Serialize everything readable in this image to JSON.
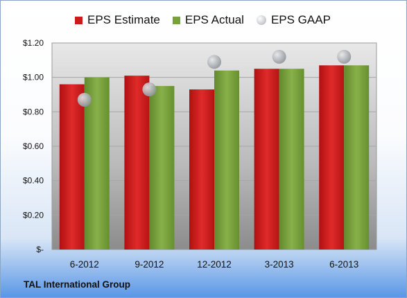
{
  "chart_data": {
    "type": "bar",
    "categories": [
      "6-2012",
      "9-2012",
      "12-2012",
      "3-2013",
      "6-2013"
    ],
    "series": [
      {
        "name": "EPS Estimate",
        "values": [
          0.96,
          1.01,
          0.93,
          1.05,
          1.07
        ],
        "color": "#cc1a1a",
        "mark": "bar"
      },
      {
        "name": "EPS Actual",
        "values": [
          1.0,
          0.95,
          1.04,
          1.05,
          1.07
        ],
        "color": "#77a13a",
        "mark": "bar"
      },
      {
        "name": "EPS GAAP",
        "values": [
          0.87,
          0.93,
          1.09,
          1.12,
          1.12
        ],
        "color": "#b8bcc2",
        "mark": "point"
      }
    ],
    "y_tick_labels": [
      "$-",
      "$0.20",
      "$0.40",
      "$0.60",
      "$0.80",
      "$1.00",
      "$1.20"
    ],
    "y_ticks": [
      0,
      0.2,
      0.4,
      0.6,
      0.8,
      1.0,
      1.2
    ],
    "ylim": [
      0,
      1.2
    ],
    "legend_position": "top",
    "grid": true
  },
  "footer": {
    "company": "TAL International Group"
  }
}
